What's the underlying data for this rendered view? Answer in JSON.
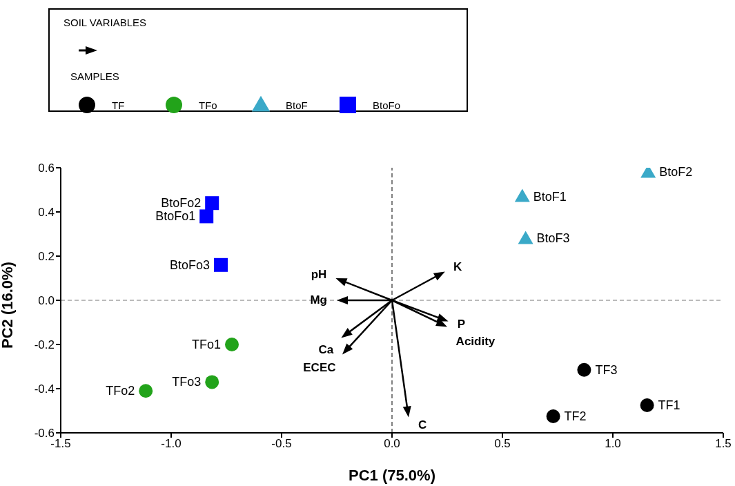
{
  "chart_data": {
    "type": "scatter",
    "xlabel": "PC1 (75.0%)",
    "ylabel": "PC2 (16.0%)",
    "xlim": [
      -1.5,
      1.5
    ],
    "ylim": [
      -0.6,
      0.6
    ],
    "xticks": [
      -1.5,
      {
        "value": -1.0,
        "label": "-1.0"
      },
      -0.5,
      {
        "value": 0,
        "label": "0.0"
      },
      0.5,
      {
        "value": 1.0,
        "label": "1.0"
      },
      1.5
    ],
    "yticks": [
      -0.6,
      -0.4,
      -0.2,
      {
        "value": 0,
        "label": "0.0"
      },
      0.2,
      0.4,
      0.6
    ],
    "grid": false,
    "legend": "top left",
    "legend_title": "SAMPLES",
    "ref_lines": [
      {
        "axis": "x",
        "value": 0,
        "color": "#000000",
        "line_style": "dashed"
      },
      {
        "axis": "y",
        "value": 0,
        "color": "#777777",
        "line_style": "dashed"
      }
    ],
    "series": [
      {
        "name": "TF",
        "color": "#000000",
        "marker": "circle",
        "x": [
          1.155,
          0.73,
          0.87
        ],
        "values": [
          -0.475,
          -0.525,
          -0.315
        ]
      },
      {
        "name": "TFo",
        "color": "#22a31a",
        "marker": "circle",
        "x": [
          -0.725,
          -1.115,
          -0.815
        ],
        "values": [
          -0.2,
          -0.41,
          -0.37
        ]
      },
      {
        "name": "BtoF",
        "color": "#3aa9c8",
        "marker": "triangle",
        "x": [
          0.59,
          1.16,
          0.605
        ],
        "values": [
          0.47,
          0.58,
          0.28
        ]
      },
      {
        "name": "BtoFo",
        "color": "#0000ff",
        "marker": "square",
        "x": [
          -0.84,
          -0.815,
          -0.775
        ],
        "values": [
          0.38,
          0.44,
          0.16
        ]
      }
    ],
    "annotations": [
      "SOIL VARIABLES",
      "pH",
      "Mg",
      "K",
      "P",
      "Acidity",
      "Ca",
      "ECEC",
      "C",
      {
        "text": "TF1",
        "x": 1.155,
        "y": -0.475
      },
      {
        "text": "TF2",
        "x": 0.73,
        "y": -0.525
      },
      {
        "text": "TF3",
        "x": 0.87,
        "y": -0.315
      },
      {
        "text": "TFo1",
        "x": -0.725,
        "y": -0.2
      },
      {
        "text": "TFo2",
        "x": -1.115,
        "y": -0.41
      },
      {
        "text": "TFo3",
        "x": -0.815,
        "y": -0.37
      },
      {
        "text": "BtoF1",
        "x": 0.59,
        "y": 0.47
      },
      {
        "text": "BtoF2",
        "x": 1.16,
        "y": 0.58
      },
      {
        "text": "BtoF3",
        "x": 0.605,
        "y": 0.28
      },
      {
        "text": "BtoFo1",
        "x": -0.84,
        "y": 0.38
      },
      {
        "text": "BtoFo2",
        "x": -0.815,
        "y": 0.44
      },
      {
        "text": "BtoFo3",
        "x": -0.775,
        "y": 0.16
      }
    ]
  }
}
